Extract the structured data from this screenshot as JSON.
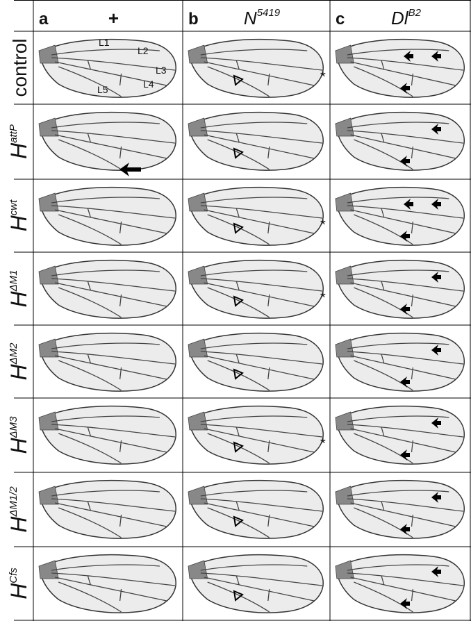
{
  "columns": [
    {
      "letter": "a",
      "genotype": "+"
    },
    {
      "letter": "b",
      "genotype": "N",
      "superscript": "5419"
    },
    {
      "letter": "c",
      "genotype": "Dl",
      "superscript": "B2"
    }
  ],
  "rows": [
    {
      "label": "control"
    },
    {
      "label": "H",
      "superscript": "attP"
    },
    {
      "label": "H",
      "superscript": "cwt"
    },
    {
      "label": "H",
      "superscript": "ΔM1"
    },
    {
      "label": "H",
      "superscript": "ΔM2"
    },
    {
      "label": "H",
      "superscript": "ΔM3"
    },
    {
      "label": "H",
      "superscript": "ΔM1/2"
    },
    {
      "label": "H",
      "superscript": "Cfs"
    }
  ],
  "vein_labels": [
    "L1",
    "L2",
    "L3",
    "L4",
    "L5"
  ],
  "asterisk": "*"
}
